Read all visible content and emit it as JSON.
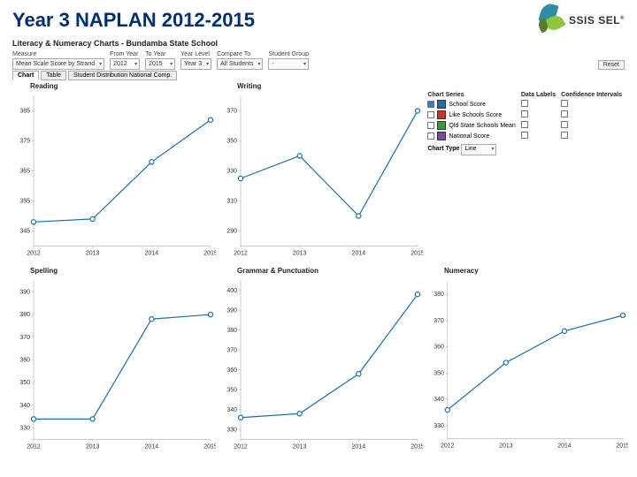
{
  "header": {
    "title": "Year 3 NAPLAN 2012-2015",
    "logo_text": "SSIS SEL"
  },
  "subhead": "Literacy & Numeracy Charts - Bundamba State School",
  "filters": {
    "measure": {
      "label": "Measure",
      "value": "Mean Scale Score by Strand"
    },
    "from_year": {
      "label": "From Year",
      "value": "2012"
    },
    "to_year": {
      "label": "To Year",
      "value": "2015"
    },
    "year_level": {
      "label": "Year Level",
      "value": "Year 3"
    },
    "compare_to": {
      "label": "Compare To",
      "value": "All Students"
    },
    "student_group": {
      "label": "Student Group",
      "value": "-"
    },
    "reset": "Reset"
  },
  "tabs": [
    "Chart",
    "Table",
    "Student Distribution National Comp."
  ],
  "active_tab": 0,
  "series_color": "#1d6fa5",
  "legend": {
    "headers": [
      "Chart Series",
      "Data Labels",
      "Confidence Intervals"
    ],
    "rows": [
      {
        "label": "School Score",
        "color": "#1d6fa5",
        "checked": true
      },
      {
        "label": "Like Schools Score",
        "color": "#d62c2c",
        "checked": false
      },
      {
        "label": "Qld State Schools Mean",
        "color": "#3a9a3a",
        "checked": false
      },
      {
        "label": "National Score",
        "color": "#7a4a9a",
        "checked": false
      }
    ],
    "chart_type": {
      "label": "Chart Type",
      "value": "Line"
    }
  },
  "charts": [
    {
      "title": "Reading",
      "x": [
        "2012",
        "2013",
        "2014",
        "2015"
      ],
      "y_ticks": [
        345,
        355,
        365,
        375,
        385
      ],
      "ylim": [
        340,
        390
      ],
      "values": [
        348,
        349,
        368,
        382
      ]
    },
    {
      "title": "Writing",
      "x": [
        "2012",
        "2013",
        "2014",
        "2015"
      ],
      "y_ticks": [
        290,
        310,
        330,
        350,
        370
      ],
      "ylim": [
        280,
        380
      ],
      "values": [
        325,
        340,
        300,
        370
      ]
    },
    {
      "title": "Spelling",
      "x": [
        "2012",
        "2013",
        "2014",
        "2015"
      ],
      "y_ticks": [
        330,
        340,
        350,
        360,
        370,
        380,
        390
      ],
      "ylim": [
        325,
        395
      ],
      "values": [
        334,
        334,
        378,
        380
      ]
    },
    {
      "title": "Grammar & Punctuation",
      "x": [
        "2012",
        "2013",
        "2014",
        "2015"
      ],
      "y_ticks": [
        330,
        340,
        350,
        360,
        370,
        380,
        390,
        400
      ],
      "ylim": [
        325,
        405
      ],
      "values": [
        336,
        338,
        358,
        398
      ]
    },
    {
      "title": "Numeracy",
      "x": [
        "2012",
        "2013",
        "2014",
        "2015"
      ],
      "y_ticks": [
        330,
        340,
        350,
        360,
        370,
        380
      ],
      "ylim": [
        325,
        385
      ],
      "values": [
        336,
        354,
        366,
        372
      ]
    }
  ]
}
